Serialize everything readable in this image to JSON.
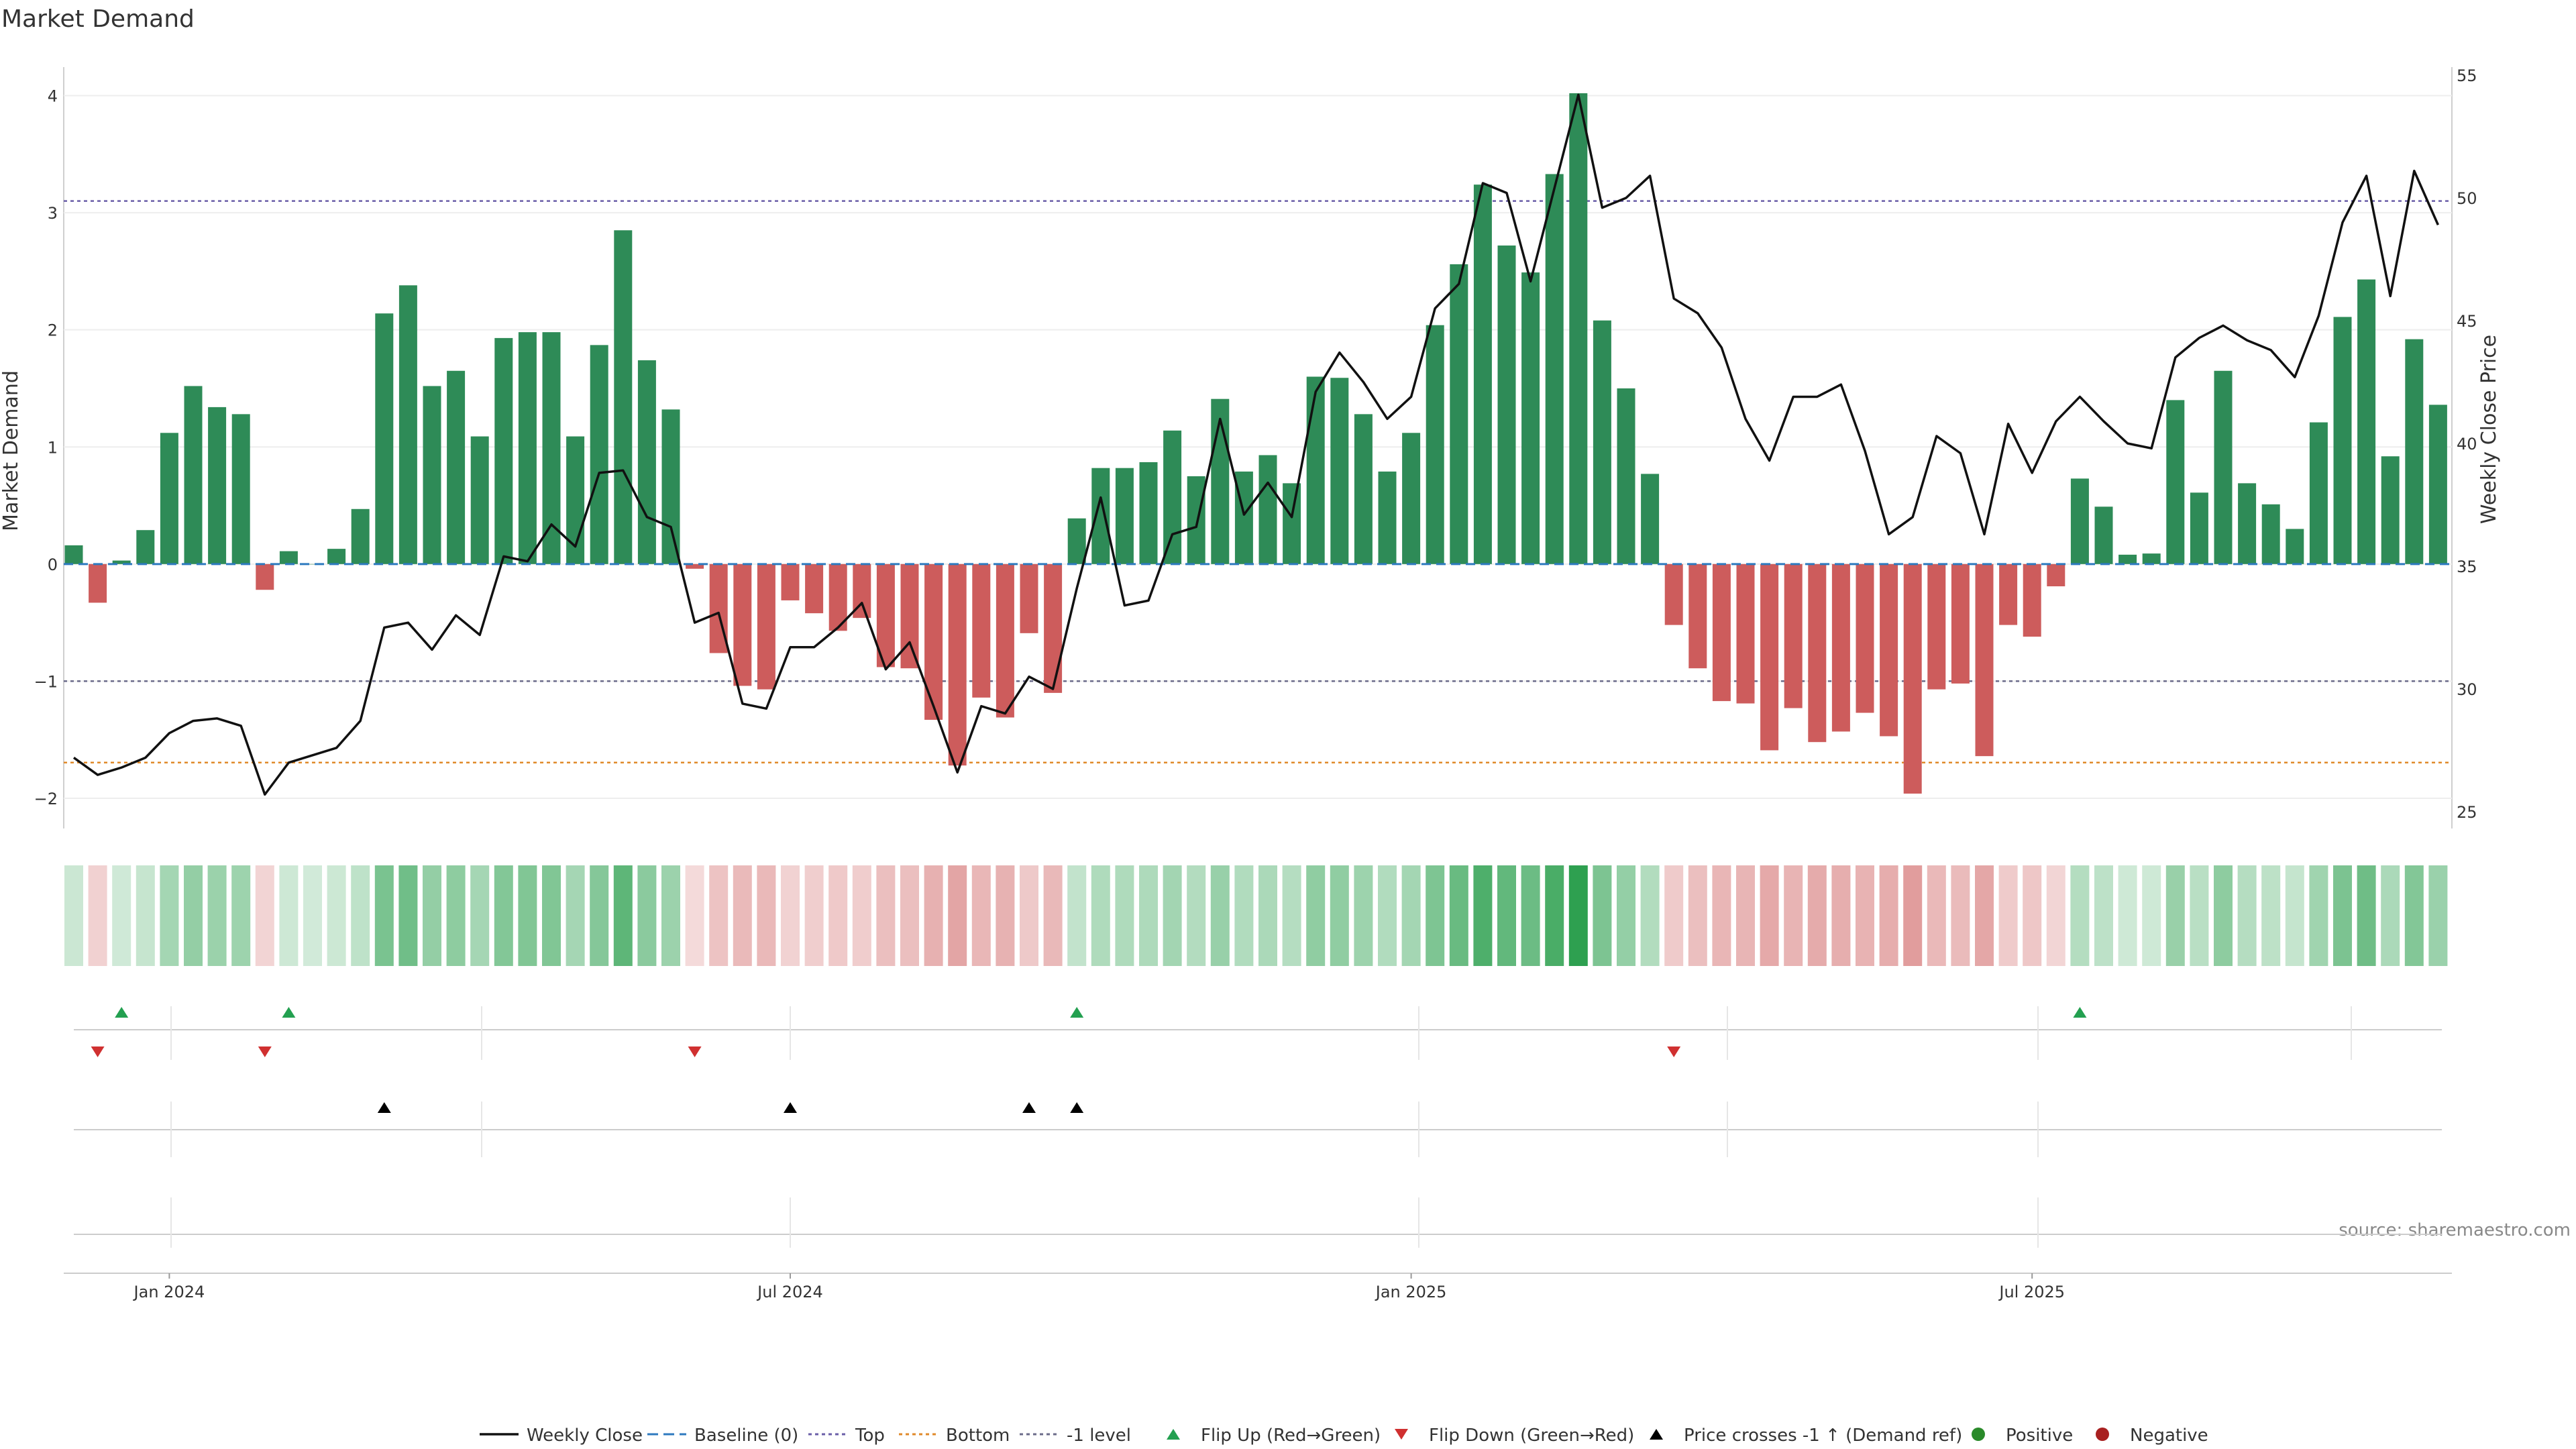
{
  "chart_data": {
    "type": "bar",
    "title": "Market Demand",
    "ylabel": "Market Demand",
    "y2label": "Weekly Close Price",
    "ylim": [
      -2.3,
      4.0
    ],
    "y_ticks": [
      -2,
      -1,
      0,
      1,
      2,
      3,
      4
    ],
    "y_tick_labels": [
      "−2",
      "−1",
      "0",
      "1",
      "2",
      "3",
      "4"
    ],
    "y2lim": [
      24.4,
      55.2
    ],
    "y2_ticks": [
      25,
      30,
      35,
      40,
      45,
      50,
      55
    ],
    "y2_tick_labels": [
      "25",
      "30",
      "35",
      "40",
      "45",
      "50",
      "55"
    ],
    "x_tick_labels": [
      "Jan 2024",
      "Jul 2024",
      "Jan 2025",
      "Jul 2025"
    ],
    "x_tick_index": [
      4,
      30,
      56,
      82
    ],
    "reference_lines": {
      "top": 3.1,
      "minus_one": -1.0,
      "bottom_price": 27.0
    },
    "series": [
      {
        "name": "Market Demand",
        "kind": "bar",
        "values": [
          0.16,
          -0.33,
          0.03,
          0.29,
          1.12,
          1.52,
          1.34,
          1.28,
          -0.22,
          0.11,
          0.0,
          0.13,
          0.47,
          2.14,
          2.38,
          1.52,
          1.65,
          1.09,
          1.93,
          1.98,
          1.98,
          1.09,
          1.87,
          2.85,
          1.74,
          1.32,
          -0.04,
          -0.76,
          -1.04,
          -1.07,
          -0.31,
          -0.42,
          -0.57,
          -0.46,
          -0.88,
          -0.89,
          -1.33,
          -1.72,
          -1.14,
          -1.31,
          -0.59,
          -1.1,
          0.39,
          0.82,
          0.82,
          0.87,
          1.14,
          0.75,
          1.41,
          0.79,
          0.93,
          0.69,
          1.6,
          1.59,
          1.28,
          0.79,
          1.12,
          2.04,
          2.56,
          3.24,
          2.72,
          2.49,
          3.33,
          4.02,
          2.08,
          1.5,
          0.77,
          -0.52,
          -0.89,
          -1.17,
          -1.19,
          -1.59,
          -1.23,
          -1.52,
          -1.43,
          -1.27,
          -1.47,
          -1.96,
          -1.07,
          -1.02,
          -1.64,
          -0.52,
          -0.62,
          -0.19,
          0.73,
          0.49,
          0.08,
          0.09,
          1.4,
          0.61,
          1.65,
          0.69,
          0.51,
          0.3,
          1.21,
          2.11,
          2.43,
          0.92,
          1.92,
          1.36
        ]
      },
      {
        "name": "Weekly Close",
        "kind": "line",
        "values": [
          27.2,
          26.5,
          26.8,
          27.2,
          28.2,
          28.7,
          28.8,
          28.5,
          25.7,
          27.0,
          27.3,
          27.6,
          28.7,
          32.5,
          32.7,
          31.6,
          33.0,
          32.2,
          35.4,
          35.2,
          36.7,
          35.8,
          38.8,
          38.9,
          37.0,
          36.6,
          32.7,
          33.1,
          29.4,
          29.2,
          31.7,
          31.7,
          32.5,
          33.5,
          30.8,
          31.9,
          29.3,
          26.6,
          29.3,
          29.0,
          30.5,
          30.0,
          34.1,
          37.8,
          33.4,
          33.6,
          36.3,
          36.6,
          41.0,
          37.1,
          38.4,
          37.0,
          42.1,
          43.7,
          42.5,
          41.0,
          41.9,
          45.5,
          46.5,
          50.6,
          50.2,
          46.6,
          50.4,
          54.2,
          49.6,
          50.0,
          50.9,
          45.9,
          45.3,
          43.9,
          41.0,
          39.3,
          41.9,
          41.9,
          42.4,
          39.7,
          36.3,
          37.0,
          40.3,
          39.6,
          36.3,
          40.8,
          38.8,
          40.9,
          41.9,
          40.9,
          40.0,
          39.8,
          43.5,
          44.3,
          44.8,
          44.2,
          43.8,
          42.7,
          45.2,
          49.0,
          50.9,
          46.0,
          51.1,
          48.9
        ]
      }
    ],
    "markers": {
      "flip_up": [
        2,
        9,
        42,
        84
      ],
      "flip_down": [
        1,
        8,
        26,
        67
      ],
      "price_crosses": [
        13,
        30,
        40,
        42
      ]
    },
    "legend": [
      {
        "label": "Weekly Close",
        "symbol": "line",
        "color": "#111111"
      },
      {
        "label": "Baseline (0)",
        "symbol": "dash",
        "color": "#2e7abf"
      },
      {
        "label": "Top",
        "symbol": "dot",
        "color": "#6a5ea8"
      },
      {
        "label": "Bottom",
        "symbol": "dot",
        "color": "#e08a2a"
      },
      {
        "label": "-1 level",
        "symbol": "dot",
        "color": "#6b6b8a"
      },
      {
        "label": "Flip Up (Red→Green)",
        "symbol": "tri-up",
        "color": "#23a050"
      },
      {
        "label": "Flip Down (Green→Red)",
        "symbol": "tri-down",
        "color": "#d03030"
      },
      {
        "label": "Price crosses -1 ↑ (Demand ref)",
        "symbol": "tri-up",
        "color": "#000000"
      },
      {
        "label": "Positive",
        "symbol": "circle",
        "color": "#2a8a2a"
      },
      {
        "label": "Negative",
        "symbol": "circle",
        "color": "#a82020"
      }
    ],
    "source": "source: sharemaestro.com"
  },
  "colors": {
    "positive_bar": "#2e8b57",
    "negative_bar": "#cd5c5c",
    "price_line": "#111111",
    "baseline": "#2e7abf",
    "top_line": "#6a5ea8",
    "minus_one_line": "#6b6b8a",
    "bottom_line": "#e08a2a"
  }
}
